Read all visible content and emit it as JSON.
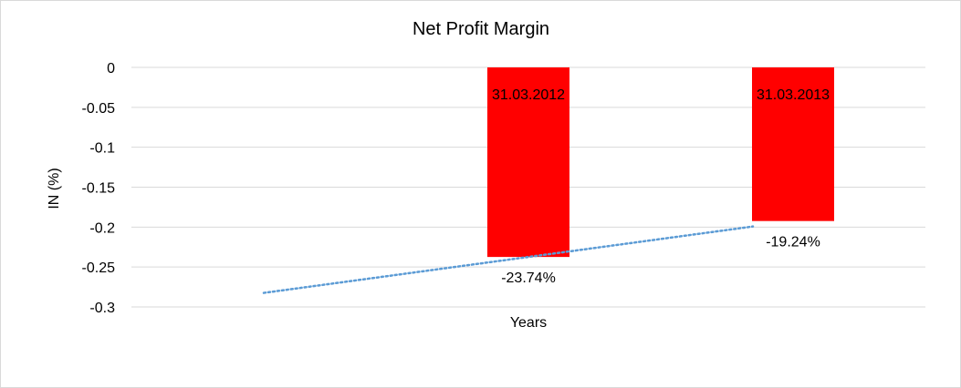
{
  "chart_data": {
    "type": "bar",
    "title": "Net Profit Margin",
    "xlabel": "Years",
    "ylabel": "IN (%)",
    "ylim": [
      -0.3,
      0
    ],
    "yticks": [
      "0",
      "-0.05",
      "-0.1",
      "-0.15",
      "-0.2",
      "-0.25",
      "-0.3"
    ],
    "y_tick_values": [
      0,
      -0.05,
      -0.1,
      -0.15,
      -0.2,
      -0.25,
      -0.3
    ],
    "grid": true,
    "legend": "none",
    "categories": [
      "",
      "31.03.2012",
      "31.03.2013"
    ],
    "series": [
      {
        "values": [
          null,
          -0.2374,
          -0.1924
        ],
        "data_labels": [
          "",
          "-23.74%",
          "-19.24%"
        ],
        "color": "#ff0000"
      }
    ],
    "trendline": {
      "kind": "linear",
      "color": "#5b9bd5",
      "style": "dotted",
      "start": {
        "category_index": 0,
        "value": -0.2824
      },
      "end": {
        "category_index": 2,
        "value": -0.1924
      }
    }
  }
}
